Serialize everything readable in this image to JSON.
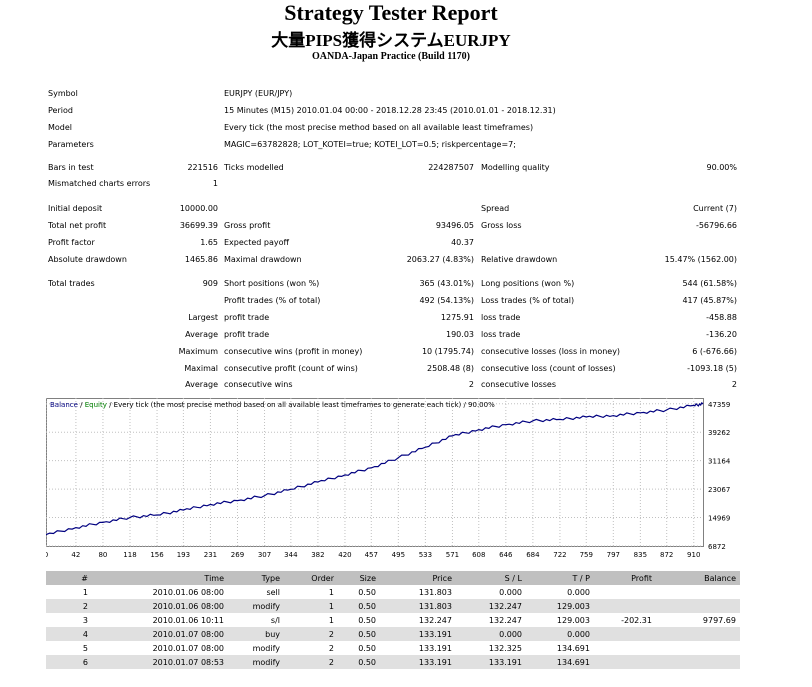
{
  "header": {
    "title": "Strategy Tester Report",
    "system_name": "大量PIPS獲得システムEURJPY",
    "server": "OANDA-Japan Practice (Build 1170)"
  },
  "info": {
    "symbol_label": "Symbol",
    "symbol": "EURJPY (EUR/JPY)",
    "period_label": "Period",
    "period": "15 Minutes (M15) 2010.01.04 00:00 - 2018.12.28 23:45 (2010.01.01 - 2018.12.31)",
    "model_label": "Model",
    "model": "Every tick (the most precise method based on all available least timeframes)",
    "parameters_label": "Parameters",
    "parameters": "MAGIC=63782828; LOT_KOTEI=true; KOTEI_LOT=0.5; riskpercentage=7;"
  },
  "stats": {
    "bars_label": "Bars in test",
    "bars": "221516",
    "ticks_label": "Ticks modelled",
    "ticks": "224287507",
    "quality_label": "Modelling quality",
    "quality": "90.00%",
    "mismatch_label": "Mismatched charts errors",
    "mismatch": "1",
    "deposit_label": "Initial deposit",
    "deposit": "10000.00",
    "spread_label": "Spread",
    "spread": "Current (7)",
    "net_label": "Total net profit",
    "net": "36699.39",
    "gross_profit_label": "Gross profit",
    "gross_profit": "93496.05",
    "gross_loss_label": "Gross loss",
    "gross_loss": "-56796.66",
    "pf_label": "Profit factor",
    "pf": "1.65",
    "payoff_label": "Expected payoff",
    "payoff": "40.37",
    "abs_dd_label": "Absolute drawdown",
    "abs_dd": "1465.86",
    "max_dd_label": "Maximal drawdown",
    "max_dd": "2063.27 (4.83%)",
    "rel_dd_label": "Relative drawdown",
    "rel_dd": "15.47% (1562.00)",
    "trades_label": "Total trades",
    "trades": "909",
    "short_label": "Short positions (won %)",
    "short": "365 (43.01%)",
    "long_label": "Long positions (won %)",
    "long": "544 (61.58%)",
    "ptrades_label": "Profit trades (% of total)",
    "ptrades": "492 (54.13%)",
    "ltrades_label": "Loss trades (% of total)",
    "ltrades": "417 (45.87%)",
    "largest_label": "Largest",
    "profit_trade_label": "profit trade",
    "largest_profit": "1275.91",
    "loss_trade_label": "loss trade",
    "largest_loss": "-458.88",
    "average_label": "Average",
    "avg_profit": "190.03",
    "avg_loss": "-136.20",
    "maximum_label": "Maximum",
    "cw_money_label": "consecutive wins (profit in money)",
    "cw_money": "10 (1795.74)",
    "cl_money_label": "consecutive losses (loss in money)",
    "cl_money": "6 (-676.66)",
    "maximal_label": "Maximal",
    "cp_count_label": "consecutive profit (count of wins)",
    "cp_count": "2508.48 (8)",
    "cl_count_label": "consecutive loss (count of losses)",
    "cl_count": "-1093.18 (5)",
    "average2_label": "Average",
    "cwins_label": "consecutive wins",
    "cwins": "2",
    "closses_label": "consecutive losses",
    "closses": "2"
  },
  "chart_data": {
    "type": "line",
    "legend_balance": "Balance",
    "legend_sep": " / ",
    "legend_equity": "Equity",
    "legend_rest": " / Every tick (the most precise method based on all available least timeframes to generate each tick) / 90.00%",
    "series": [
      {
        "name": "Balance",
        "color": "#000080",
        "x": [
          0,
          42,
          80,
          118,
          156,
          193,
          231,
          269,
          307,
          344,
          382,
          420,
          457,
          495,
          533,
          571,
          608,
          646,
          684,
          722,
          759,
          797,
          835,
          872,
          910,
          923
        ],
        "values": [
          10100,
          12100,
          13600,
          15000,
          15700,
          17100,
          18700,
          19800,
          21200,
          23000,
          25100,
          27100,
          29100,
          32000,
          35000,
          38200,
          40000,
          41400,
          42500,
          42900,
          43600,
          44000,
          44800,
          45600,
          46900,
          47300
        ]
      }
    ],
    "ytick_labels": [
      "47359",
      "39262",
      "31164",
      "23067",
      "14969",
      "6872"
    ],
    "yticks": [
      47359,
      39262,
      31164,
      23067,
      14969,
      6872
    ],
    "xtick_labels": [
      "0",
      "42",
      "80",
      "118",
      "156",
      "193",
      "231",
      "269",
      "307",
      "344",
      "382",
      "420",
      "457",
      "495",
      "533",
      "571",
      "608",
      "646",
      "684",
      "722",
      "759",
      "797",
      "835",
      "872",
      "910"
    ],
    "xlim": [
      0,
      923
    ],
    "ylim": [
      6872,
      49000
    ],
    "grid": true
  },
  "table": {
    "headers": [
      "#",
      "Time",
      "Type",
      "Order",
      "Size",
      "Price",
      "S / L",
      "T / P",
      "Profit",
      "Balance"
    ],
    "rows": [
      [
        "1",
        "2010.01.06 08:00",
        "sell",
        "1",
        "0.50",
        "131.803",
        "0.000",
        "0.000",
        "",
        ""
      ],
      [
        "2",
        "2010.01.06 08:00",
        "modify",
        "1",
        "0.50",
        "131.803",
        "132.247",
        "129.003",
        "",
        ""
      ],
      [
        "3",
        "2010.01.06 10:11",
        "s/l",
        "1",
        "0.50",
        "132.247",
        "132.247",
        "129.003",
        "-202.31",
        "9797.69"
      ],
      [
        "4",
        "2010.01.07 08:00",
        "buy",
        "2",
        "0.50",
        "133.191",
        "0.000",
        "0.000",
        "",
        ""
      ],
      [
        "5",
        "2010.01.07 08:00",
        "modify",
        "2",
        "0.50",
        "133.191",
        "132.325",
        "134.691",
        "",
        ""
      ],
      [
        "6",
        "2010.01.07 08:53",
        "modify",
        "2",
        "0.50",
        "133.191",
        "133.191",
        "134.691",
        "",
        ""
      ]
    ]
  }
}
